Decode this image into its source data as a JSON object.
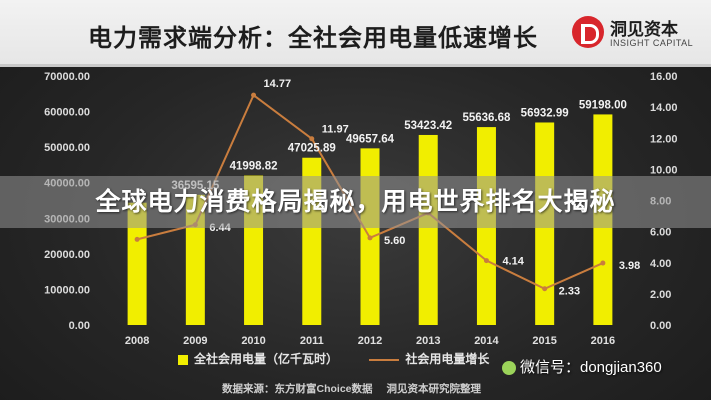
{
  "header": {
    "title": "电力需求端分析：全社会用电量低速增长",
    "logo_cn": "洞见资本",
    "logo_en": "INSIGHT CAPITAL"
  },
  "banner": {
    "text": "全球电力消费格局揭秘，用电世界排名大揭秘"
  },
  "legend": {
    "bars": "全社会用电量（亿千瓦时）",
    "line": "社会用电量增长"
  },
  "watermark": {
    "text": "微信号：dongjian360",
    "icon": "wechat-icon"
  },
  "source": {
    "prefix": "数据来源：东方财富Choice数据",
    "suffix": "洞见资本研究院整理"
  },
  "colors": {
    "bar": "#f1ee00",
    "line": "#c97d3e",
    "logo": "#d8262c"
  },
  "chart_data": {
    "type": "bar",
    "categories": [
      "2008",
      "2009",
      "2010",
      "2011",
      "2012",
      "2013",
      "2014",
      "2015",
      "2016"
    ],
    "series": [
      {
        "type": "bar",
        "axis": "left",
        "values": [
          34380.0,
          36595.15,
          41998.82,
          47025.89,
          49657.64,
          53423.42,
          55636.68,
          56932.99,
          59198.0
        ],
        "labels": [
          "",
          "36595.15",
          "41998.82",
          "47025.89",
          "49657.64",
          "53423.42",
          "55636.68",
          "56932.99",
          "59198.00"
        ]
      },
      {
        "type": "line",
        "axis": "right",
        "values": [
          5.5,
          6.44,
          14.77,
          11.97,
          5.6,
          7.2,
          4.14,
          2.33,
          3.98
        ],
        "labels": [
          "",
          "6.44",
          "14.77",
          "11.97",
          "5.60",
          "",
          "4.14",
          "2.33",
          "3.98"
        ]
      }
    ],
    "ylim_left": [
      0,
      70000
    ],
    "ylim_right": [
      0,
      16
    ],
    "yticks_left": [
      "0.00",
      "10000.00",
      "20000.00",
      "30000.00",
      "40000.00",
      "50000.00",
      "60000.00",
      "70000.00"
    ],
    "yticks_right": [
      "0.00",
      "2.00",
      "4.00",
      "6.00",
      "8.00",
      "10.00",
      "12.00",
      "14.00",
      "16.00"
    ],
    "grid": false,
    "legend_position": "bottom"
  }
}
